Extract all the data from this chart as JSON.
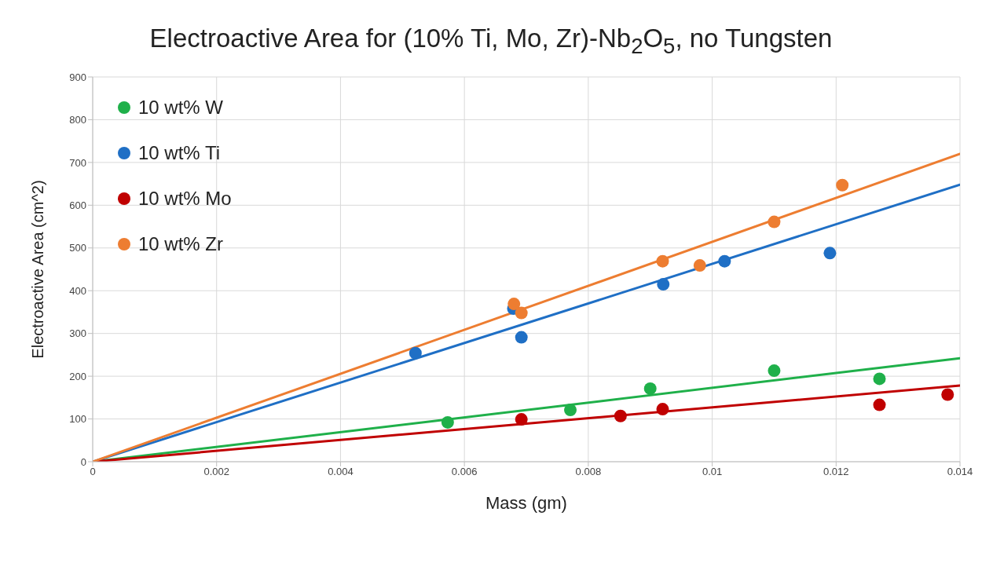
{
  "chart_data": {
    "type": "scatter",
    "title": "Electroactive Area for (10% Ti, Mo, Zr)-Nb$_{2}$O$_{5}$, no Tungsten",
    "xlabel": "Mass (gm)",
    "ylabel": "Electroactive Area (cm^2)",
    "xlim": [
      0,
      0.014
    ],
    "xticks": [
      0,
      0.002,
      0.004,
      0.006,
      0.008,
      0.01,
      0.012,
      0.014
    ],
    "ylim": [
      0,
      900
    ],
    "yticks": [
      0,
      100,
      200,
      300,
      400,
      500,
      600,
      700,
      800,
      900
    ],
    "grid": true,
    "legend": "top left",
    "marker": "circle",
    "series": [
      {
        "name": "10 wt% W",
        "color": "#1fb04a",
        "x": [
          0.00573,
          0.00771,
          0.009,
          0.011,
          0.0127
        ],
        "values": [
          92,
          121,
          171,
          213,
          194
        ]
      },
      {
        "name": "10 wt% Ti",
        "color": "#1f6fc5",
        "x": [
          0.00521,
          0.00679,
          0.00692,
          0.00921,
          0.0102,
          0.0119
        ],
        "values": [
          254,
          358,
          291,
          415,
          469,
          488
        ]
      },
      {
        "name": "10 wt% Mo",
        "color": "#c00000",
        "x": [
          0.00692,
          0.00852,
          0.0092,
          0.0127,
          0.0138
        ],
        "values": [
          99,
          107,
          123,
          133,
          157
        ]
      },
      {
        "name": "10 wt% Zr",
        "color": "#ed7d31",
        "x": [
          0.0068,
          0.00692,
          0.0092,
          0.0098,
          0.011,
          0.0121
        ],
        "values": [
          369,
          348,
          469,
          459,
          561,
          647
        ]
      },
      {
        "type": "line",
        "marker": "none",
        "color": "#1fb04a",
        "x": [
          0,
          0.014
        ],
        "values": [
          0,
          242
        ]
      },
      {
        "type": "line",
        "marker": "none",
        "color": "#1f6fc5",
        "x": [
          0,
          0.014
        ],
        "values": [
          0,
          648
        ]
      },
      {
        "type": "line",
        "marker": "none",
        "color": "#c00000",
        "x": [
          0,
          0.014
        ],
        "values": [
          0,
          178
        ]
      },
      {
        "type": "line",
        "marker": "none",
        "color": "#ed7d31",
        "x": [
          0,
          0.014
        ],
        "values": [
          0,
          720
        ]
      }
    ]
  }
}
